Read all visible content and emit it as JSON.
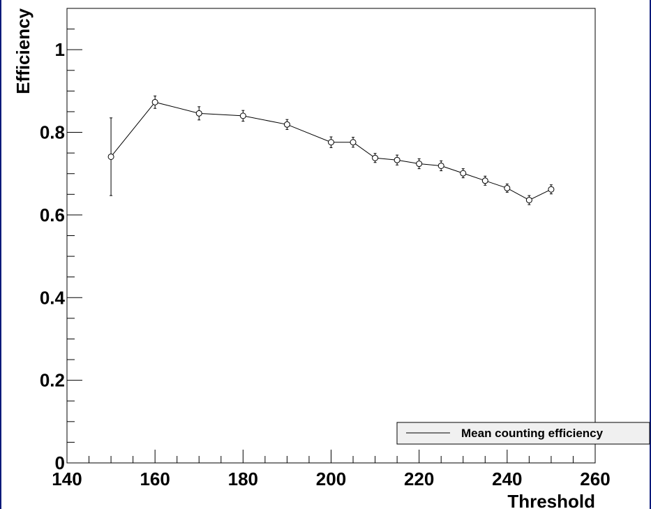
{
  "colors": {
    "frame": "#0b1a7a",
    "axis": "#000000",
    "series": "#000000",
    "legend_bg": "#f0f0f0"
  },
  "chart_data": {
    "type": "line",
    "title": "",
    "xlabel": "Threshold",
    "ylabel": "Efficiency",
    "xlim": [
      140,
      260
    ],
    "ylim": [
      0,
      1.1
    ],
    "x_ticks": [
      140,
      160,
      180,
      200,
      220,
      240,
      260
    ],
    "x_tick_labels": [
      "140",
      "160",
      "180",
      "200",
      "220",
      "240",
      "260"
    ],
    "y_ticks": [
      0,
      0.2,
      0.4,
      0.6,
      0.8,
      1
    ],
    "y_tick_labels": [
      "0",
      "0.2",
      "0.4",
      "0.6",
      "0.8",
      "1"
    ],
    "grid": false,
    "legend_position": "bottom-right",
    "series": [
      {
        "name": "Mean counting efficiency",
        "marker": "open-circle",
        "x": [
          150,
          160,
          170,
          180,
          190,
          200,
          205,
          210,
          215,
          220,
          225,
          230,
          235,
          240,
          245,
          250
        ],
        "y": [
          0.741,
          0.873,
          0.846,
          0.84,
          0.819,
          0.776,
          0.776,
          0.738,
          0.733,
          0.724,
          0.719,
          0.701,
          0.683,
          0.665,
          0.636,
          0.662
        ],
        "err": [
          0.094,
          0.015,
          0.016,
          0.013,
          0.012,
          0.013,
          0.012,
          0.011,
          0.012,
          0.012,
          0.012,
          0.011,
          0.011,
          0.01,
          0.011,
          0.011
        ]
      }
    ]
  }
}
